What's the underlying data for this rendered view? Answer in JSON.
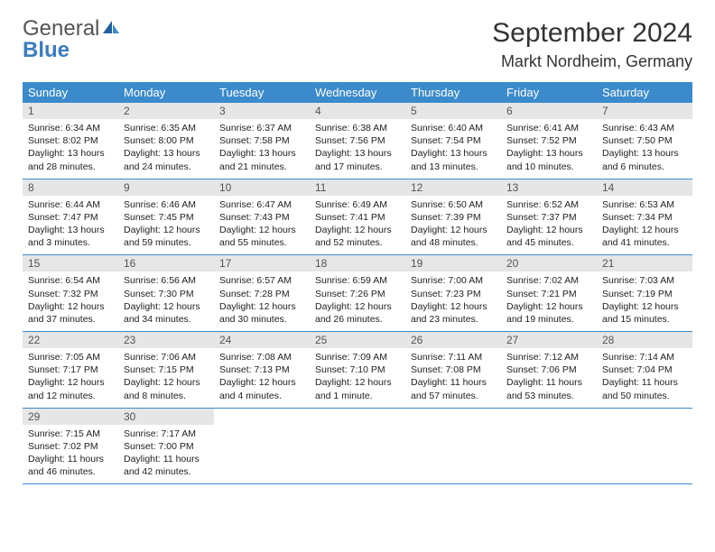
{
  "logo": {
    "text_gray": "General",
    "text_blue": "Blue"
  },
  "title": "September 2024",
  "location": "Markt Nordheim, Germany",
  "colors": {
    "header_bg": "#3b8bcc",
    "header_fg": "#ffffff",
    "daynum_bg": "#e6e6e6",
    "rule": "#3b8bcc",
    "logo_blue": "#3b7bbf"
  },
  "days_of_week": [
    "Sunday",
    "Monday",
    "Tuesday",
    "Wednesday",
    "Thursday",
    "Friday",
    "Saturday"
  ],
  "weeks": [
    [
      {
        "n": "1",
        "sr": "6:34 AM",
        "ss": "8:02 PM",
        "dl": "13 hours and 28 minutes."
      },
      {
        "n": "2",
        "sr": "6:35 AM",
        "ss": "8:00 PM",
        "dl": "13 hours and 24 minutes."
      },
      {
        "n": "3",
        "sr": "6:37 AM",
        "ss": "7:58 PM",
        "dl": "13 hours and 21 minutes."
      },
      {
        "n": "4",
        "sr": "6:38 AM",
        "ss": "7:56 PM",
        "dl": "13 hours and 17 minutes."
      },
      {
        "n": "5",
        "sr": "6:40 AM",
        "ss": "7:54 PM",
        "dl": "13 hours and 13 minutes."
      },
      {
        "n": "6",
        "sr": "6:41 AM",
        "ss": "7:52 PM",
        "dl": "13 hours and 10 minutes."
      },
      {
        "n": "7",
        "sr": "6:43 AM",
        "ss": "7:50 PM",
        "dl": "13 hours and 6 minutes."
      }
    ],
    [
      {
        "n": "8",
        "sr": "6:44 AM",
        "ss": "7:47 PM",
        "dl": "13 hours and 3 minutes."
      },
      {
        "n": "9",
        "sr": "6:46 AM",
        "ss": "7:45 PM",
        "dl": "12 hours and 59 minutes."
      },
      {
        "n": "10",
        "sr": "6:47 AM",
        "ss": "7:43 PM",
        "dl": "12 hours and 55 minutes."
      },
      {
        "n": "11",
        "sr": "6:49 AM",
        "ss": "7:41 PM",
        "dl": "12 hours and 52 minutes."
      },
      {
        "n": "12",
        "sr": "6:50 AM",
        "ss": "7:39 PM",
        "dl": "12 hours and 48 minutes."
      },
      {
        "n": "13",
        "sr": "6:52 AM",
        "ss": "7:37 PM",
        "dl": "12 hours and 45 minutes."
      },
      {
        "n": "14",
        "sr": "6:53 AM",
        "ss": "7:34 PM",
        "dl": "12 hours and 41 minutes."
      }
    ],
    [
      {
        "n": "15",
        "sr": "6:54 AM",
        "ss": "7:32 PM",
        "dl": "12 hours and 37 minutes."
      },
      {
        "n": "16",
        "sr": "6:56 AM",
        "ss": "7:30 PM",
        "dl": "12 hours and 34 minutes."
      },
      {
        "n": "17",
        "sr": "6:57 AM",
        "ss": "7:28 PM",
        "dl": "12 hours and 30 minutes."
      },
      {
        "n": "18",
        "sr": "6:59 AM",
        "ss": "7:26 PM",
        "dl": "12 hours and 26 minutes."
      },
      {
        "n": "19",
        "sr": "7:00 AM",
        "ss": "7:23 PM",
        "dl": "12 hours and 23 minutes."
      },
      {
        "n": "20",
        "sr": "7:02 AM",
        "ss": "7:21 PM",
        "dl": "12 hours and 19 minutes."
      },
      {
        "n": "21",
        "sr": "7:03 AM",
        "ss": "7:19 PM",
        "dl": "12 hours and 15 minutes."
      }
    ],
    [
      {
        "n": "22",
        "sr": "7:05 AM",
        "ss": "7:17 PM",
        "dl": "12 hours and 12 minutes."
      },
      {
        "n": "23",
        "sr": "7:06 AM",
        "ss": "7:15 PM",
        "dl": "12 hours and 8 minutes."
      },
      {
        "n": "24",
        "sr": "7:08 AM",
        "ss": "7:13 PM",
        "dl": "12 hours and 4 minutes."
      },
      {
        "n": "25",
        "sr": "7:09 AM",
        "ss": "7:10 PM",
        "dl": "12 hours and 1 minute."
      },
      {
        "n": "26",
        "sr": "7:11 AM",
        "ss": "7:08 PM",
        "dl": "11 hours and 57 minutes."
      },
      {
        "n": "27",
        "sr": "7:12 AM",
        "ss": "7:06 PM",
        "dl": "11 hours and 53 minutes."
      },
      {
        "n": "28",
        "sr": "7:14 AM",
        "ss": "7:04 PM",
        "dl": "11 hours and 50 minutes."
      }
    ],
    [
      {
        "n": "29",
        "sr": "7:15 AM",
        "ss": "7:02 PM",
        "dl": "11 hours and 46 minutes."
      },
      {
        "n": "30",
        "sr": "7:17 AM",
        "ss": "7:00 PM",
        "dl": "11 hours and 42 minutes."
      },
      null,
      null,
      null,
      null,
      null
    ]
  ],
  "labels": {
    "sunrise": "Sunrise:",
    "sunset": "Sunset:",
    "daylight": "Daylight:"
  }
}
